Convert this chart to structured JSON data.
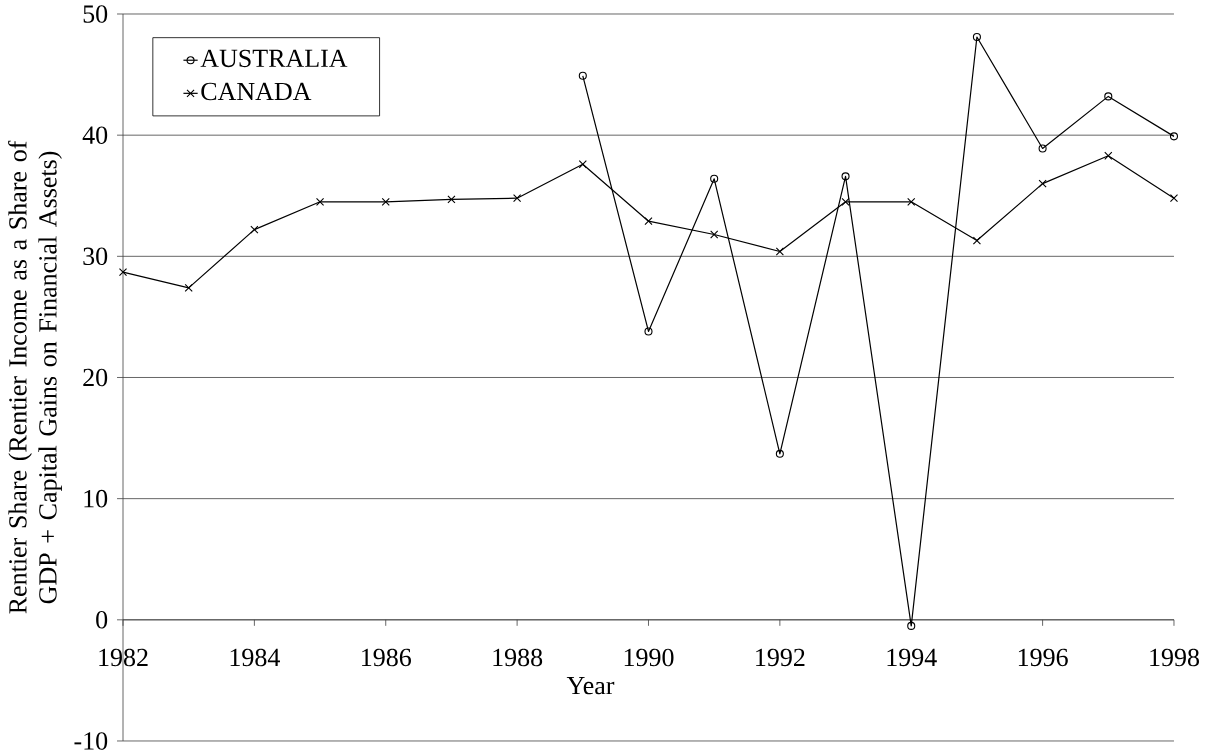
{
  "chart_data": {
    "type": "line",
    "xlabel": "Year",
    "ylabel": "Rentier Share (Rentier Income as a Share of GDP + Capital Gains on Financial Assets)",
    "x": [
      1982,
      1983,
      1984,
      1985,
      1986,
      1987,
      1988,
      1989,
      1990,
      1991,
      1992,
      1993,
      1994,
      1995,
      1996,
      1997,
      1998
    ],
    "series": [
      {
        "name": "AUSTRALIA",
        "color": "#000000",
        "marker": "circle",
        "values": [
          null,
          null,
          null,
          null,
          null,
          null,
          null,
          44.9,
          23.8,
          36.4,
          13.7,
          36.6,
          -0.5,
          48.1,
          38.9,
          43.2,
          39.9
        ]
      },
      {
        "name": "CANADA",
        "color": "#000000",
        "marker": "cross",
        "values": [
          28.7,
          27.4,
          32.2,
          34.5,
          34.5,
          34.7,
          34.8,
          37.6,
          32.9,
          31.8,
          30.4,
          34.5,
          34.5,
          31.3,
          36.0,
          38.3,
          34.8
        ]
      }
    ],
    "xlim": [
      1982,
      1998
    ],
    "xticks": [
      1982,
      1984,
      1986,
      1988,
      1990,
      1992,
      1994,
      1996,
      1998
    ],
    "ylim": [
      -10,
      50
    ],
    "yticks": [
      -10,
      0,
      10,
      20,
      30,
      40,
      50
    ],
    "grid": "y",
    "legend": "top left",
    "line_style": "solid"
  }
}
